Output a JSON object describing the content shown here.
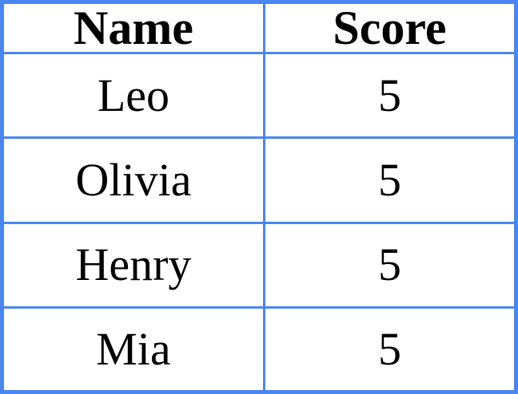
{
  "chart_data": {
    "type": "table",
    "columns": [
      "Name",
      "Score"
    ],
    "rows": [
      [
        "Leo",
        "5"
      ],
      [
        "Olivia",
        "5"
      ],
      [
        "Henry",
        "5"
      ],
      [
        "Mia",
        "5"
      ]
    ]
  },
  "colors": {
    "grid_border": "#4a86f0",
    "text": "#000000",
    "background": "#ffffff"
  }
}
